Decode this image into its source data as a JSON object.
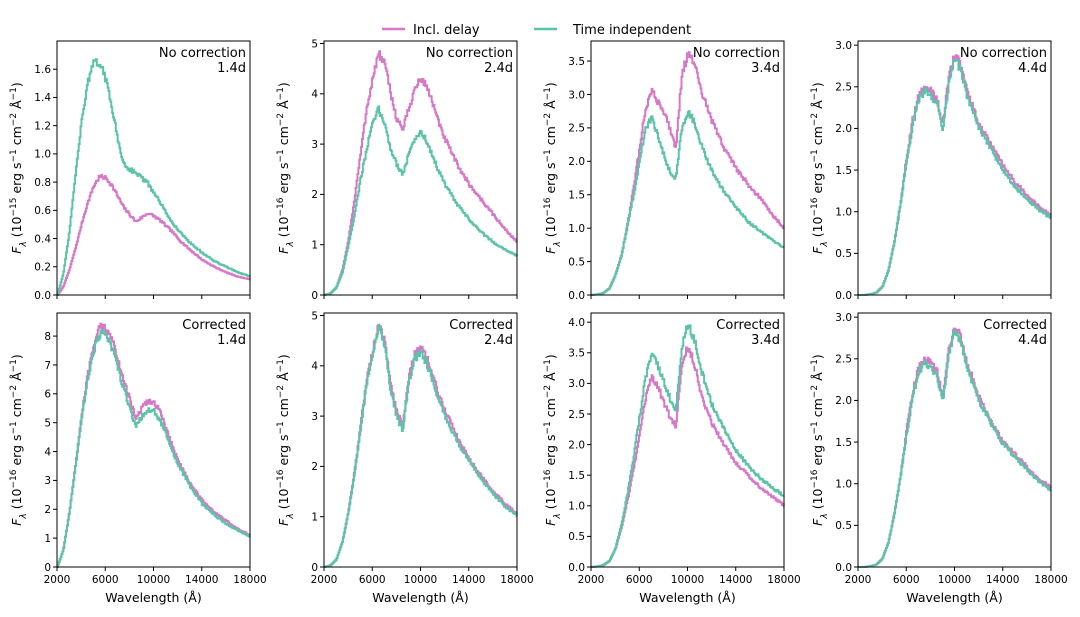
{
  "legend": {
    "placement": "top-center",
    "items": [
      {
        "label": "Incl. delay",
        "color": "#d677c8"
      },
      {
        "label": "Time independent",
        "color": "#5dc3a8"
      }
    ]
  },
  "chart_data": [
    {
      "type": "line",
      "row": "No correction",
      "time": "1.4d",
      "ylabel": "F_λ (10^−15 erg s^−1 cm^−2 Å^−1)",
      "y_exponent": "−15",
      "xlabel": "",
      "xlim": [
        2000,
        18000
      ],
      "ylim": [
        0,
        1.8
      ],
      "yticks": [
        0.0,
        0.2,
        0.4,
        0.6,
        0.8,
        1.0,
        1.2,
        1.4,
        1.6
      ],
      "ytick_labels": [
        "0.0",
        "0.2",
        "0.4",
        "0.6",
        "0.8",
        "1.0",
        "1.2",
        "1.4",
        "1.6"
      ],
      "xticks": [
        2000,
        6000,
        10000,
        14000,
        18000
      ],
      "xtick_labels": [
        "",
        "",
        "",
        "",
        ""
      ],
      "x": [
        2000,
        2500,
        3000,
        3500,
        4000,
        4500,
        5000,
        5500,
        6000,
        6500,
        7000,
        7500,
        8000,
        8500,
        9000,
        9500,
        10000,
        10500,
        11000,
        11500,
        12000,
        13000,
        14000,
        15000,
        16000,
        17000,
        18000
      ],
      "series": [
        {
          "name": "Incl. delay",
          "values": [
            0.0,
            0.06,
            0.18,
            0.33,
            0.5,
            0.65,
            0.77,
            0.84,
            0.83,
            0.78,
            0.7,
            0.62,
            0.57,
            0.52,
            0.55,
            0.58,
            0.56,
            0.53,
            0.49,
            0.45,
            0.4,
            0.32,
            0.25,
            0.2,
            0.16,
            0.13,
            0.11
          ]
        },
        {
          "name": "Time independent",
          "values": [
            0.0,
            0.15,
            0.45,
            0.85,
            1.22,
            1.5,
            1.64,
            1.65,
            1.53,
            1.35,
            1.1,
            0.93,
            0.89,
            0.87,
            0.83,
            0.79,
            0.72,
            0.66,
            0.58,
            0.52,
            0.46,
            0.37,
            0.3,
            0.24,
            0.2,
            0.16,
            0.13
          ]
        }
      ]
    },
    {
      "type": "line",
      "row": "No correction",
      "time": "2.4d",
      "ylabel": "F_λ (10^−16 erg s^−1 cm^−2 Å^−1)",
      "y_exponent": "−16",
      "xlabel": "",
      "xlim": [
        2000,
        18000
      ],
      "ylim": [
        0,
        5.05
      ],
      "yticks": [
        0,
        1,
        2,
        3,
        4,
        5
      ],
      "ytick_labels": [
        "0",
        "1",
        "2",
        "3",
        "4",
        "5"
      ],
      "xticks": [
        2000,
        6000,
        10000,
        14000,
        18000
      ],
      "xtick_labels": [
        "",
        "",
        "",
        "",
        ""
      ],
      "x": [
        2000,
        2500,
        3000,
        3500,
        4000,
        4500,
        5000,
        5500,
        6000,
        6500,
        7000,
        7500,
        8000,
        8500,
        9000,
        9500,
        10000,
        10500,
        11000,
        11500,
        12000,
        13000,
        14000,
        15000,
        16000,
        17000,
        18000
      ],
      "series": [
        {
          "name": "Incl. delay",
          "values": [
            0.0,
            0.03,
            0.15,
            0.5,
            1.1,
            1.9,
            2.8,
            3.7,
            4.3,
            4.8,
            4.6,
            4.0,
            3.5,
            3.3,
            3.7,
            4.1,
            4.3,
            4.15,
            3.8,
            3.4,
            3.1,
            2.6,
            2.2,
            1.9,
            1.6,
            1.3,
            1.05
          ]
        },
        {
          "name": "Time independent",
          "values": [
            0.0,
            0.03,
            0.15,
            0.45,
            1.0,
            1.6,
            2.3,
            2.9,
            3.4,
            3.7,
            3.4,
            2.9,
            2.6,
            2.4,
            2.8,
            3.1,
            3.25,
            3.05,
            2.75,
            2.45,
            2.2,
            1.8,
            1.5,
            1.25,
            1.05,
            0.9,
            0.78
          ]
        }
      ]
    },
    {
      "type": "line",
      "row": "No correction",
      "time": "3.4d",
      "ylabel": "F_λ (10^−16 erg s^−1 cm^−2 Å^−1)",
      "y_exponent": "−16",
      "xlabel": "",
      "xlim": [
        2000,
        18000
      ],
      "ylim": [
        0,
        3.8
      ],
      "yticks": [
        0.0,
        0.5,
        1.0,
        1.5,
        2.0,
        2.5,
        3.0,
        3.5
      ],
      "ytick_labels": [
        "0.0",
        "0.5",
        "1.0",
        "1.5",
        "2.0",
        "2.5",
        "3.0",
        "3.5"
      ],
      "xticks": [
        2000,
        6000,
        10000,
        14000,
        18000
      ],
      "xtick_labels": [
        "",
        "",
        "",
        "",
        ""
      ],
      "x": [
        2000,
        2500,
        3000,
        3500,
        4000,
        4500,
        5000,
        5500,
        6000,
        6500,
        7000,
        7500,
        8000,
        8500,
        9000,
        9500,
        10000,
        10500,
        11000,
        11500,
        12000,
        13000,
        14000,
        15000,
        16000,
        17000,
        18000
      ],
      "series": [
        {
          "name": "Incl. delay",
          "values": [
            0.0,
            0.01,
            0.03,
            0.1,
            0.3,
            0.6,
            1.05,
            1.6,
            2.2,
            2.8,
            3.05,
            2.9,
            2.75,
            2.5,
            2.2,
            3.3,
            3.6,
            3.5,
            3.1,
            2.85,
            2.6,
            2.2,
            1.9,
            1.65,
            1.45,
            1.2,
            1.0
          ]
        },
        {
          "name": "Time independent",
          "values": [
            0.0,
            0.01,
            0.03,
            0.1,
            0.3,
            0.6,
            1.05,
            1.5,
            2.0,
            2.5,
            2.65,
            2.4,
            2.1,
            1.85,
            1.75,
            2.5,
            2.75,
            2.6,
            2.3,
            2.05,
            1.85,
            1.55,
            1.3,
            1.1,
            0.95,
            0.82,
            0.7
          ]
        }
      ]
    },
    {
      "type": "line",
      "row": "No correction",
      "time": "4.4d",
      "ylabel": "F_λ (10^−16 erg s^−1 cm^−2 Å^−1)",
      "y_exponent": "−16",
      "xlabel": "",
      "xlim": [
        2000,
        18000
      ],
      "ylim": [
        0,
        3.05
      ],
      "yticks": [
        0.0,
        0.5,
        1.0,
        1.5,
        2.0,
        2.5,
        3.0
      ],
      "ytick_labels": [
        "0.0",
        "0.5",
        "1.0",
        "1.5",
        "2.0",
        "2.5",
        "3.0"
      ],
      "xticks": [
        2000,
        6000,
        10000,
        14000,
        18000
      ],
      "xtick_labels": [
        "",
        "",
        "",
        "",
        ""
      ],
      "x": [
        2000,
        2500,
        3000,
        3500,
        4000,
        4500,
        5000,
        5500,
        6000,
        6500,
        7000,
        7500,
        8000,
        8500,
        9000,
        9500,
        10000,
        10500,
        11000,
        11500,
        12000,
        13000,
        14000,
        15000,
        16000,
        17000,
        18000
      ],
      "series": [
        {
          "name": "Incl. delay",
          "values": [
            0.0,
            0.0,
            0.01,
            0.03,
            0.1,
            0.3,
            0.65,
            1.1,
            1.65,
            2.1,
            2.4,
            2.5,
            2.45,
            2.35,
            2.05,
            2.6,
            2.9,
            2.75,
            2.45,
            2.25,
            2.05,
            1.8,
            1.55,
            1.35,
            1.2,
            1.05,
            0.95
          ]
        },
        {
          "name": "Time independent",
          "values": [
            0.0,
            0.0,
            0.01,
            0.03,
            0.1,
            0.3,
            0.65,
            1.1,
            1.6,
            2.05,
            2.35,
            2.45,
            2.4,
            2.3,
            2.0,
            2.55,
            2.85,
            2.7,
            2.4,
            2.2,
            2.0,
            1.75,
            1.5,
            1.3,
            1.15,
            1.02,
            0.92
          ]
        }
      ]
    },
    {
      "type": "line",
      "row": "Corrected",
      "time": "1.4d",
      "ylabel": "F_λ (10^−16 erg s^−1 cm^−2 Å^−1)",
      "y_exponent": "−16",
      "xlabel": "Wavelength (Å)",
      "xlim": [
        2000,
        18000
      ],
      "ylim": [
        0,
        8.8
      ],
      "yticks": [
        0,
        1,
        2,
        3,
        4,
        5,
        6,
        7,
        8
      ],
      "ytick_labels": [
        "0",
        "1",
        "2",
        "3",
        "4",
        "5",
        "6",
        "7",
        "8"
      ],
      "xticks": [
        2000,
        6000,
        10000,
        14000,
        18000
      ],
      "xtick_labels": [
        "2000",
        "6000",
        "10000",
        "14000",
        "18000"
      ],
      "x": [
        2000,
        2500,
        3000,
        3500,
        4000,
        4500,
        5000,
        5500,
        6000,
        6500,
        7000,
        7500,
        8000,
        8500,
        9000,
        9500,
        10000,
        10500,
        11000,
        11500,
        12000,
        13000,
        14000,
        15000,
        16000,
        17000,
        18000
      ],
      "series": [
        {
          "name": "Incl. delay",
          "values": [
            0.0,
            0.6,
            1.9,
            3.5,
            5.2,
            6.6,
            7.6,
            8.3,
            8.3,
            7.9,
            7.2,
            6.5,
            5.8,
            5.1,
            5.5,
            5.75,
            5.7,
            5.4,
            4.8,
            4.2,
            3.7,
            2.9,
            2.3,
            1.9,
            1.6,
            1.3,
            1.1
          ]
        },
        {
          "name": "Time independent",
          "values": [
            0.0,
            0.6,
            1.9,
            3.5,
            5.1,
            6.5,
            7.5,
            8.05,
            8.1,
            7.6,
            6.9,
            6.2,
            5.5,
            4.9,
            5.2,
            5.45,
            5.4,
            5.1,
            4.6,
            4.05,
            3.55,
            2.8,
            2.2,
            1.8,
            1.5,
            1.25,
            1.05
          ]
        }
      ]
    },
    {
      "type": "line",
      "row": "Corrected",
      "time": "2.4d",
      "ylabel": "F_λ (10^−16 erg s^−1 cm^−2 Å^−1)",
      "y_exponent": "−16",
      "xlabel": "Wavelength (Å)",
      "xlim": [
        2000,
        18000
      ],
      "ylim": [
        0,
        5.05
      ],
      "yticks": [
        0,
        1,
        2,
        3,
        4,
        5
      ],
      "ytick_labels": [
        "0",
        "1",
        "2",
        "3",
        "4",
        "5"
      ],
      "xticks": [
        2000,
        6000,
        10000,
        14000,
        18000
      ],
      "xtick_labels": [
        "2000",
        "6000",
        "10000",
        "14000",
        "18000"
      ],
      "x": [
        2000,
        2500,
        3000,
        3500,
        4000,
        4500,
        5000,
        5500,
        6000,
        6500,
        7000,
        7500,
        8000,
        8500,
        9000,
        9500,
        10000,
        10500,
        11000,
        11500,
        12000,
        13000,
        14000,
        15000,
        16000,
        17000,
        18000
      ],
      "series": [
        {
          "name": "Incl. delay",
          "values": [
            0.0,
            0.03,
            0.15,
            0.5,
            1.1,
            1.9,
            2.8,
            3.7,
            4.3,
            4.8,
            4.5,
            3.6,
            3.1,
            2.8,
            3.8,
            4.25,
            4.35,
            4.15,
            3.8,
            3.4,
            3.1,
            2.6,
            2.15,
            1.8,
            1.5,
            1.25,
            1.05
          ]
        },
        {
          "name": "Time independent",
          "values": [
            0.0,
            0.03,
            0.15,
            0.5,
            1.1,
            1.85,
            2.75,
            3.65,
            4.25,
            4.75,
            4.4,
            3.5,
            3.0,
            2.7,
            3.7,
            4.15,
            4.25,
            4.05,
            3.7,
            3.3,
            3.0,
            2.5,
            2.1,
            1.75,
            1.45,
            1.2,
            1.02
          ]
        }
      ]
    },
    {
      "type": "line",
      "row": "Corrected",
      "time": "3.4d",
      "ylabel": "F_λ (10^−16 erg s^−1 cm^−2 Å^−1)",
      "y_exponent": "−16",
      "xlabel": "Wavelength (Å)",
      "xlim": [
        2000,
        18000
      ],
      "ylim": [
        0,
        4.15
      ],
      "yticks": [
        0.0,
        0.5,
        1.0,
        1.5,
        2.0,
        2.5,
        3.0,
        3.5,
        4.0
      ],
      "ytick_labels": [
        "0.0",
        "0.5",
        "1.0",
        "1.5",
        "2.0",
        "2.5",
        "3.0",
        "3.5",
        "4.0"
      ],
      "xticks": [
        2000,
        6000,
        10000,
        14000,
        18000
      ],
      "xtick_labels": [
        "2000",
        "6000",
        "10000",
        "14000",
        "18000"
      ],
      "x": [
        2000,
        2500,
        3000,
        3500,
        4000,
        4500,
        5000,
        5500,
        6000,
        6500,
        7000,
        7500,
        8000,
        8500,
        9000,
        9500,
        10000,
        10500,
        11000,
        11500,
        12000,
        13000,
        14000,
        15000,
        16000,
        17000,
        18000
      ],
      "series": [
        {
          "name": "Incl. delay",
          "values": [
            0.0,
            0.01,
            0.03,
            0.1,
            0.3,
            0.65,
            1.1,
            1.6,
            2.15,
            2.75,
            3.1,
            2.95,
            2.7,
            2.45,
            2.3,
            3.3,
            3.6,
            3.35,
            2.9,
            2.6,
            2.35,
            2.0,
            1.7,
            1.5,
            1.3,
            1.15,
            1.0
          ]
        },
        {
          "name": "Time independent",
          "values": [
            0.0,
            0.01,
            0.03,
            0.1,
            0.3,
            0.7,
            1.2,
            1.8,
            2.45,
            3.1,
            3.45,
            3.3,
            3.05,
            2.75,
            2.55,
            3.6,
            3.95,
            3.75,
            3.3,
            2.95,
            2.65,
            2.25,
            1.9,
            1.65,
            1.45,
            1.3,
            1.15
          ]
        }
      ]
    },
    {
      "type": "line",
      "row": "Corrected",
      "time": "4.4d",
      "ylabel": "F_λ (10^−16 erg s^−1 cm^−2 Å^−1)",
      "y_exponent": "−16",
      "xlabel": "Wavelength (Å)",
      "xlim": [
        2000,
        18000
      ],
      "ylim": [
        0,
        3.05
      ],
      "yticks": [
        0.0,
        0.5,
        1.0,
        1.5,
        2.0,
        2.5,
        3.0
      ],
      "ytick_labels": [
        "0.0",
        "0.5",
        "1.0",
        "1.5",
        "2.0",
        "2.5",
        "3.0"
      ],
      "xticks": [
        2000,
        6000,
        10000,
        14000,
        18000
      ],
      "xtick_labels": [
        "2000",
        "6000",
        "10000",
        "14000",
        "18000"
      ],
      "x": [
        2000,
        2500,
        3000,
        3500,
        4000,
        4500,
        5000,
        5500,
        6000,
        6500,
        7000,
        7500,
        8000,
        8500,
        9000,
        9500,
        10000,
        10500,
        11000,
        11500,
        12000,
        13000,
        14000,
        15000,
        16000,
        17000,
        18000
      ],
      "series": [
        {
          "name": "Incl. delay",
          "values": [
            0.0,
            0.0,
            0.01,
            0.03,
            0.1,
            0.3,
            0.65,
            1.1,
            1.65,
            2.1,
            2.4,
            2.5,
            2.45,
            2.35,
            2.05,
            2.6,
            2.9,
            2.75,
            2.45,
            2.25,
            2.05,
            1.75,
            1.5,
            1.35,
            1.2,
            1.05,
            0.95
          ]
        },
        {
          "name": "Time independent",
          "values": [
            0.0,
            0.0,
            0.01,
            0.03,
            0.1,
            0.3,
            0.65,
            1.1,
            1.6,
            2.05,
            2.35,
            2.45,
            2.4,
            2.3,
            2.0,
            2.55,
            2.85,
            2.7,
            2.4,
            2.2,
            2.0,
            1.72,
            1.48,
            1.32,
            1.17,
            1.02,
            0.92
          ]
        }
      ]
    }
  ]
}
